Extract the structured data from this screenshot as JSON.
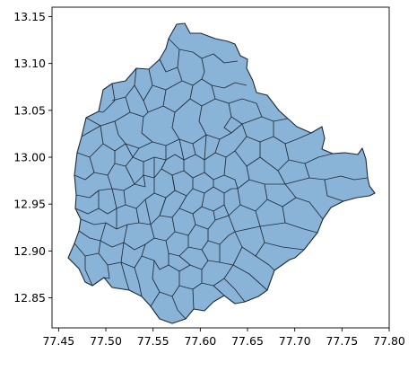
{
  "map": {
    "fill_color": "#89b4d8",
    "edge_color": "#1d2a38",
    "x_ticks": [
      {
        "value": 77.45,
        "label": "77.45"
      },
      {
        "value": 77.5,
        "label": "77.50"
      },
      {
        "value": 77.55,
        "label": "77.55"
      },
      {
        "value": 77.6,
        "label": "77.60"
      },
      {
        "value": 77.65,
        "label": "77.65"
      },
      {
        "value": 77.7,
        "label": "77.70"
      },
      {
        "value": 77.75,
        "label": "77.75"
      },
      {
        "value": 77.8,
        "label": "77.80"
      }
    ],
    "y_ticks": [
      {
        "value": 12.85,
        "label": "12.85"
      },
      {
        "value": 12.9,
        "label": "12.90"
      },
      {
        "value": 12.95,
        "label": "12.95"
      },
      {
        "value": 13.0,
        "label": "13.00"
      },
      {
        "value": 13.05,
        "label": "13.05"
      },
      {
        "value": 13.1,
        "label": "13.10"
      },
      {
        "value": 13.15,
        "label": "13.15"
      }
    ],
    "xlim": [
      77.443,
      77.8
    ],
    "ylim": [
      12.818,
      13.16
    ]
  }
}
